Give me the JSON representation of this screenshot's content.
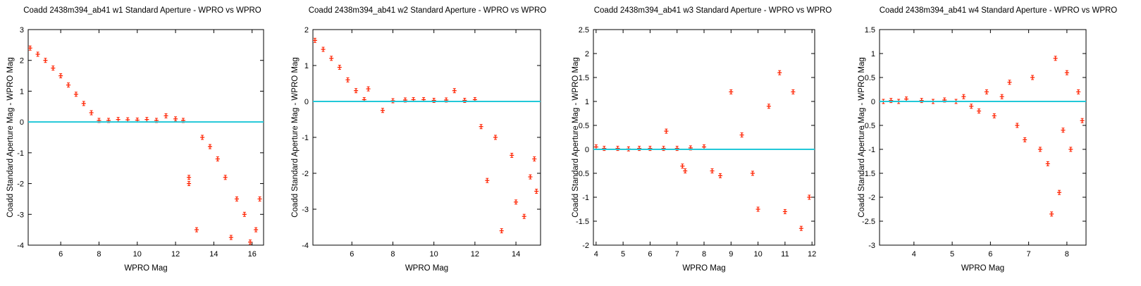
{
  "chart_data": [
    {
      "type": "scatter",
      "title": "Coadd 2438m394_ab41 w1 Standard Aperture - WPRO vs WPRO",
      "xlabel": "WPRO Mag",
      "ylabel": "Coadd Standard Aperture Mag - WPRO Mag",
      "xlim": [
        4.3,
        16.6
      ],
      "ylim": [
        -4,
        3
      ],
      "xticks": [
        6,
        8,
        10,
        12,
        14,
        16
      ],
      "yticks": [
        -4,
        -3,
        -2,
        -1,
        0,
        1,
        2,
        3
      ],
      "reference_line_y": 0,
      "series": [
        {
          "marker": "error-bar-points",
          "points": [
            [
              4.4,
              2.4
            ],
            [
              4.8,
              2.2
            ],
            [
              5.2,
              2.0
            ],
            [
              5.6,
              1.75
            ],
            [
              6.0,
              1.5
            ],
            [
              6.4,
              1.2
            ],
            [
              6.8,
              0.9
            ],
            [
              7.2,
              0.6
            ],
            [
              7.6,
              0.3
            ],
            [
              8.0,
              0.05
            ],
            [
              8.5,
              0.05
            ],
            [
              9.0,
              0.08
            ],
            [
              9.5,
              0.07
            ],
            [
              10.0,
              0.06
            ],
            [
              10.5,
              0.08
            ],
            [
              11.0,
              0.05
            ],
            [
              11.5,
              0.2
            ],
            [
              12.0,
              0.1
            ],
            [
              12.4,
              0.05
            ],
            [
              12.7,
              -1.8
            ],
            [
              12.7,
              -2.0
            ],
            [
              13.1,
              -3.5
            ],
            [
              13.4,
              -0.5
            ],
            [
              13.8,
              -0.8
            ],
            [
              14.2,
              -1.2
            ],
            [
              14.6,
              -1.8
            ],
            [
              14.9,
              -3.75
            ],
            [
              15.2,
              -2.5
            ],
            [
              15.6,
              -3.0
            ],
            [
              15.9,
              -3.9
            ],
            [
              16.2,
              -3.5
            ],
            [
              16.4,
              -2.5
            ]
          ]
        }
      ],
      "line_color": "#22c8d8",
      "marker_color": "#ff2200"
    },
    {
      "type": "scatter",
      "title": "Coadd 2438m394_ab41 w2 Standard Aperture - WPRO vs WPRO",
      "xlabel": "WPRO Mag",
      "ylabel": "Coadd Standard Aperture Mag - WPRO Mag",
      "xlim": [
        4.1,
        15.2
      ],
      "ylim": [
        -4,
        2
      ],
      "xticks": [
        6,
        8,
        10,
        12,
        14
      ],
      "yticks": [
        -4,
        -3,
        -2,
        -1,
        0,
        1,
        2
      ],
      "reference_line_y": 0,
      "series": [
        {
          "marker": "error-bar-points",
          "points": [
            [
              4.2,
              1.7
            ],
            [
              4.6,
              1.45
            ],
            [
              5.0,
              1.2
            ],
            [
              5.4,
              0.95
            ],
            [
              5.8,
              0.6
            ],
            [
              6.2,
              0.3
            ],
            [
              6.6,
              0.05
            ],
            [
              6.8,
              0.35
            ],
            [
              7.5,
              -0.25
            ],
            [
              8.0,
              0.02
            ],
            [
              8.6,
              0.04
            ],
            [
              9.0,
              0.05
            ],
            [
              9.5,
              0.05
            ],
            [
              10.0,
              0.03
            ],
            [
              10.6,
              0.04
            ],
            [
              11.0,
              0.3
            ],
            [
              11.5,
              0.03
            ],
            [
              12.0,
              0.05
            ],
            [
              12.3,
              -0.7
            ],
            [
              12.6,
              -2.2
            ],
            [
              13.0,
              -1.0
            ],
            [
              13.3,
              -3.6
            ],
            [
              13.8,
              -1.5
            ],
            [
              14.0,
              -2.8
            ],
            [
              14.4,
              -3.2
            ],
            [
              14.7,
              -2.1
            ],
            [
              14.9,
              -1.6
            ],
            [
              15.0,
              -2.5
            ]
          ]
        }
      ],
      "line_color": "#22c8d8",
      "marker_color": "#ff2200"
    },
    {
      "type": "scatter",
      "title": "Coadd 2438m394_ab41 w3 Standard Aperture - WPRO vs WPRO",
      "xlabel": "WPRO Mag",
      "ylabel": "Coadd Standard Aperture Mag - WPRO Mag",
      "xlim": [
        3.9,
        12.1
      ],
      "ylim": [
        -2,
        2.5
      ],
      "xticks": [
        4,
        5,
        6,
        7,
        8,
        9,
        10,
        11,
        12
      ],
      "yticks": [
        -2,
        -1.5,
        -1,
        -0.5,
        0,
        0.5,
        1,
        1.5,
        2,
        2.5
      ],
      "reference_line_y": 0,
      "series": [
        {
          "marker": "error-bar-points",
          "points": [
            [
              4.0,
              0.05
            ],
            [
              4.3,
              0.02
            ],
            [
              4.8,
              0.02
            ],
            [
              5.2,
              0.01
            ],
            [
              5.6,
              0.02
            ],
            [
              6.0,
              0.02
            ],
            [
              6.5,
              0.02
            ],
            [
              6.6,
              0.38
            ],
            [
              7.0,
              0.02
            ],
            [
              7.2,
              -0.35
            ],
            [
              7.3,
              -0.45
            ],
            [
              7.5,
              0.03
            ],
            [
              8.0,
              0.05
            ],
            [
              8.3,
              -0.45
            ],
            [
              8.6,
              -0.55
            ],
            [
              9.0,
              1.2
            ],
            [
              9.4,
              0.3
            ],
            [
              9.8,
              -0.5
            ],
            [
              10.0,
              -1.25
            ],
            [
              10.4,
              0.9
            ],
            [
              10.8,
              1.6
            ],
            [
              11.0,
              -1.3
            ],
            [
              11.3,
              1.2
            ],
            [
              11.6,
              -1.65
            ],
            [
              11.9,
              -1.0
            ]
          ]
        }
      ],
      "line_color": "#22c8d8",
      "marker_color": "#ff2200"
    },
    {
      "type": "scatter",
      "title": "Coadd 2438m394_ab41 w4 Standard Aperture - WPRO vs WPRO",
      "xlabel": "WPRO Mag",
      "ylabel": "Coadd Standard Aperture Mag - WPRO Mag",
      "xlim": [
        3.1,
        8.5
      ],
      "ylim": [
        -3,
        1.5
      ],
      "xticks": [
        4,
        5,
        6,
        7,
        8
      ],
      "yticks": [
        -3,
        -2.5,
        -2,
        -1.5,
        -1,
        -0.5,
        0,
        0.5,
        1,
        1.5
      ],
      "reference_line_y": 0,
      "series": [
        {
          "marker": "error-bar-points",
          "points": [
            [
              3.2,
              0.0
            ],
            [
              3.4,
              0.02
            ],
            [
              3.6,
              0.0
            ],
            [
              3.8,
              0.05
            ],
            [
              4.2,
              0.02
            ],
            [
              4.5,
              0.0
            ],
            [
              4.8,
              0.03
            ],
            [
              5.1,
              0.0
            ],
            [
              5.3,
              0.1
            ],
            [
              5.5,
              -0.1
            ],
            [
              5.7,
              -0.2
            ],
            [
              5.9,
              0.2
            ],
            [
              6.1,
              -0.3
            ],
            [
              6.3,
              0.1
            ],
            [
              6.5,
              0.4
            ],
            [
              6.7,
              -0.5
            ],
            [
              6.9,
              -0.8
            ],
            [
              7.1,
              0.5
            ],
            [
              7.3,
              -1.0
            ],
            [
              7.5,
              -1.3
            ],
            [
              7.6,
              -2.35
            ],
            [
              7.7,
              0.9
            ],
            [
              7.8,
              -1.9
            ],
            [
              7.9,
              -0.6
            ],
            [
              8.0,
              0.6
            ],
            [
              8.1,
              -1.0
            ],
            [
              8.3,
              0.2
            ],
            [
              8.4,
              -0.4
            ]
          ]
        }
      ],
      "line_color": "#22c8d8",
      "marker_color": "#ff2200"
    }
  ]
}
